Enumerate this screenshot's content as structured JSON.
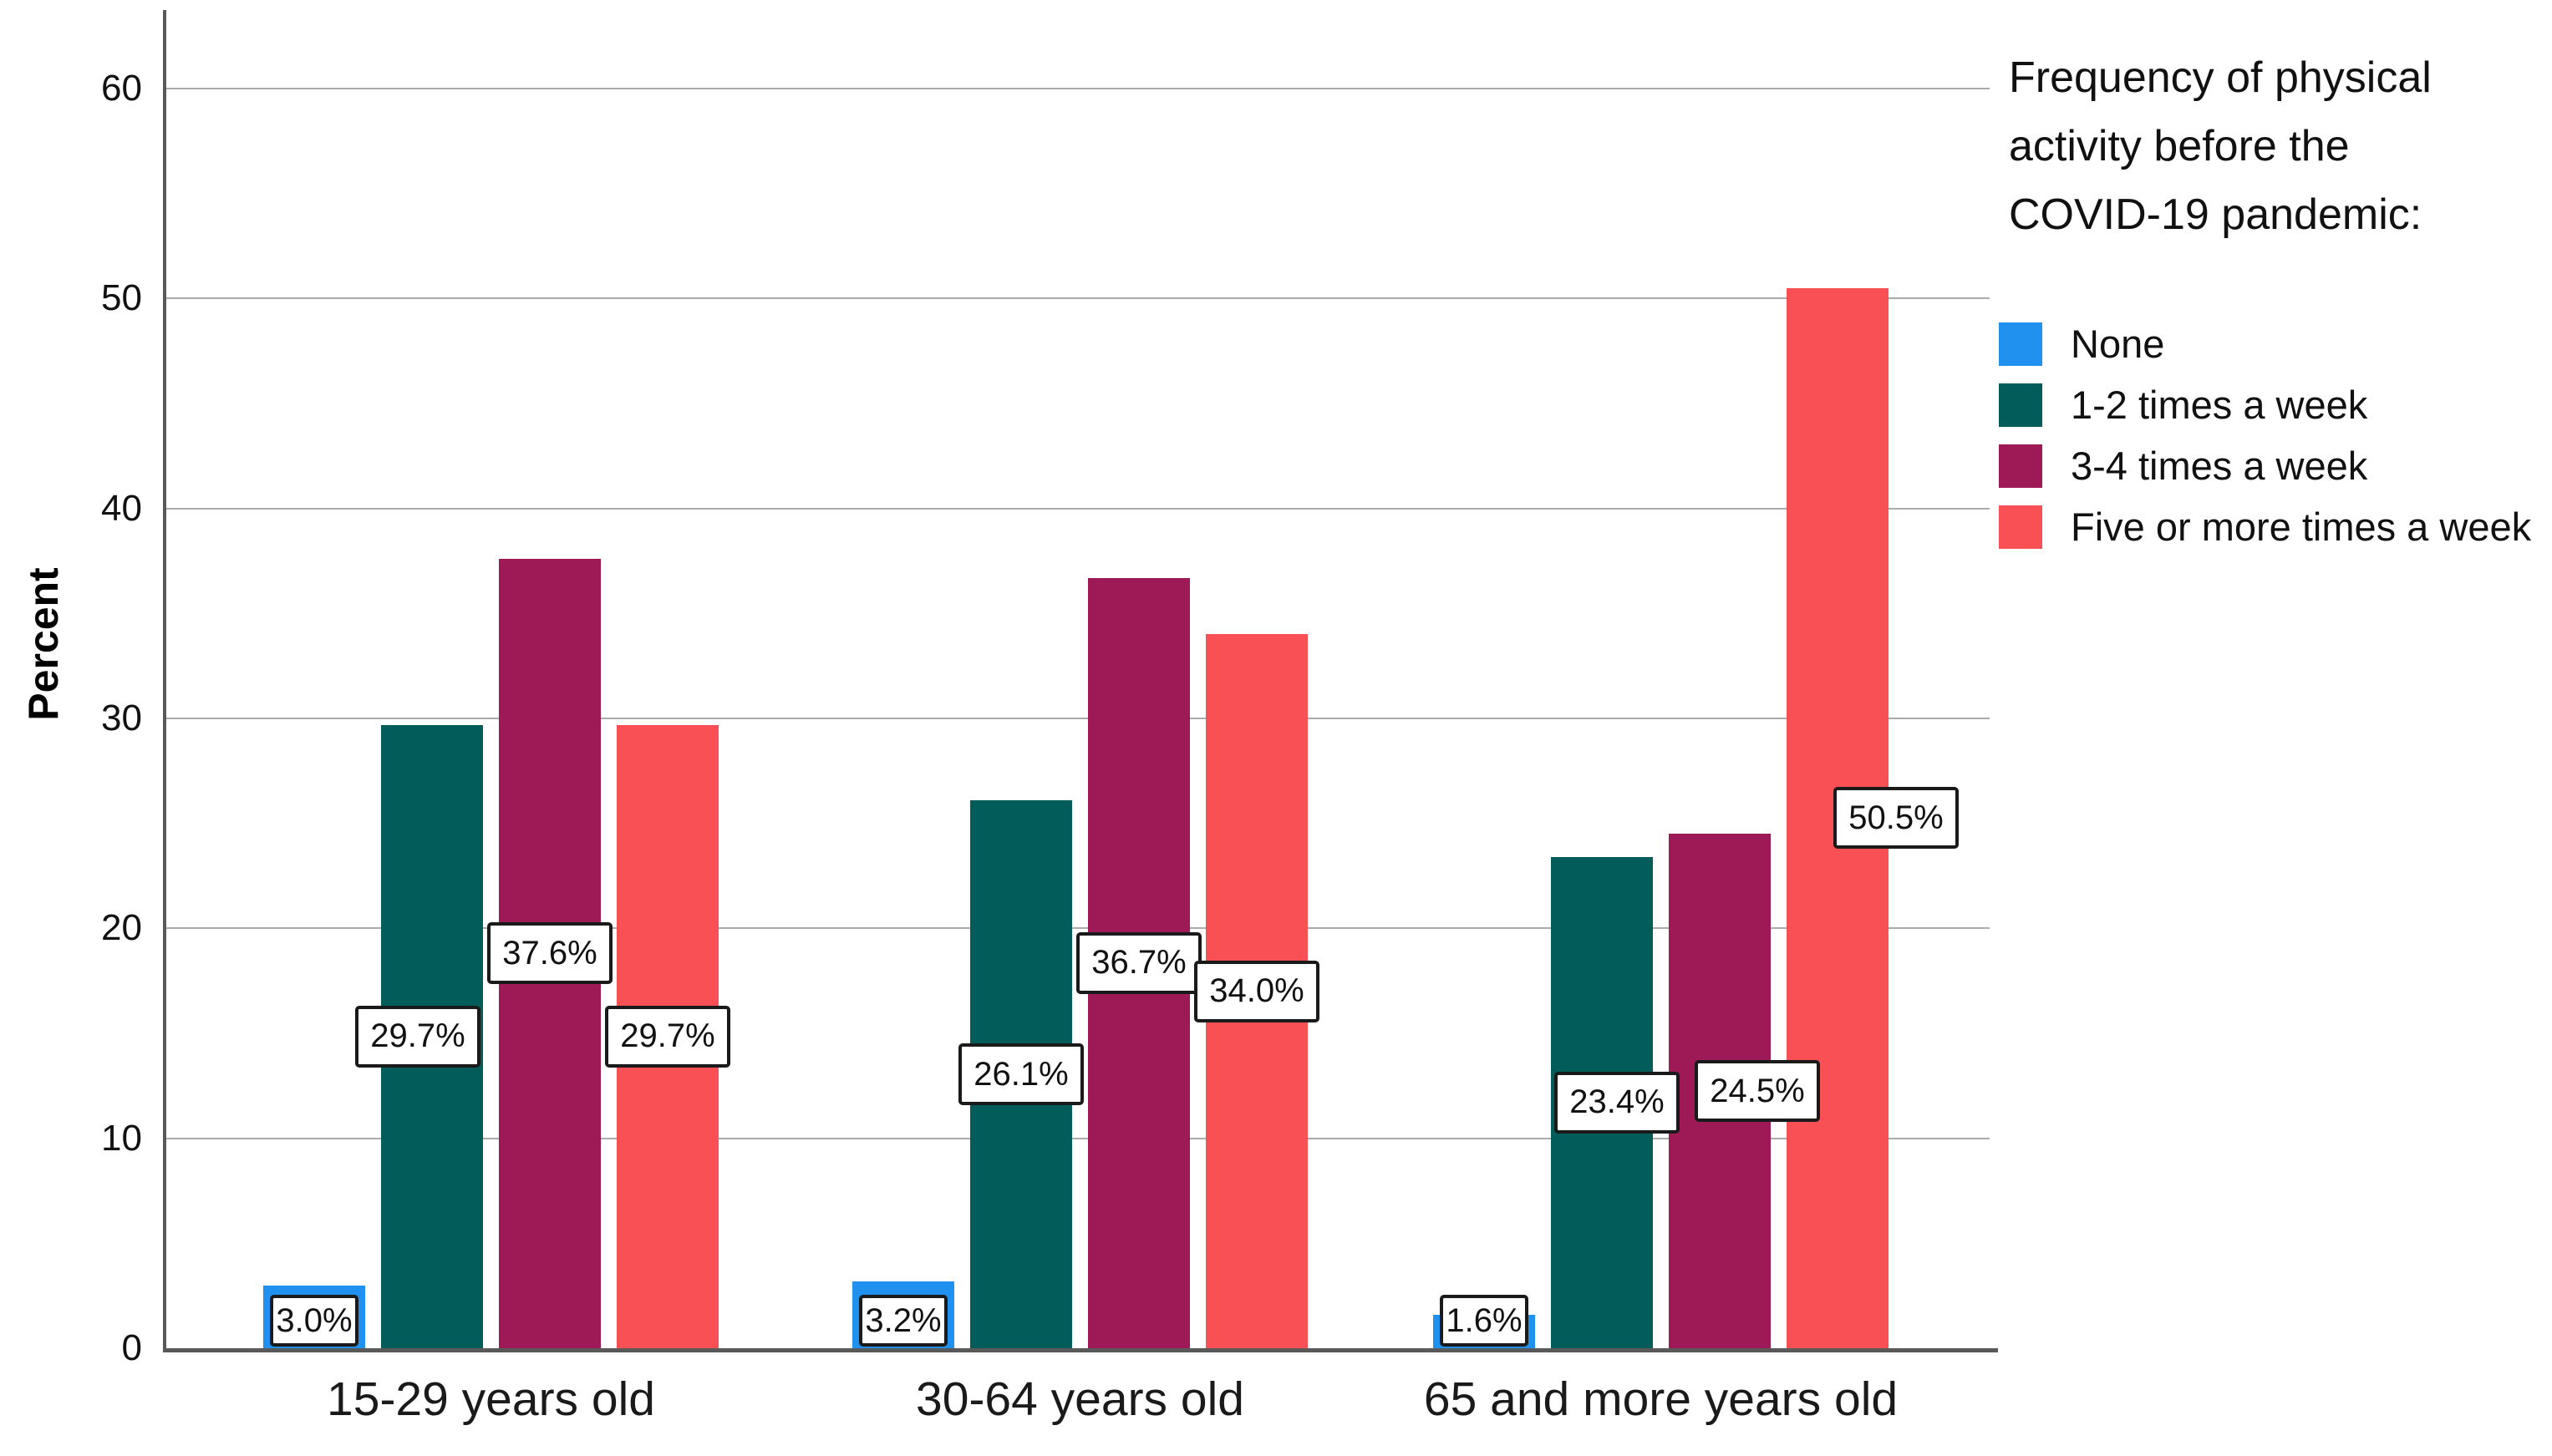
{
  "chart_data": {
    "type": "bar",
    "title": "",
    "ylabel": "Percent",
    "xlabel": "",
    "ylim": [
      0,
      60
    ],
    "yticks": [
      0,
      10,
      20,
      30,
      40,
      50,
      60
    ],
    "grid": true,
    "legend_position": "right",
    "legend_title_lines": [
      "Frequency of physical",
      "activity before the",
      "COVID-19 pandemic:"
    ],
    "categories": [
      "15-29 years old",
      "30-64 years old",
      "65 and more years old"
    ],
    "series": [
      {
        "name": "None",
        "color": "#2191F0",
        "values": [
          3.0,
          3.2,
          1.6
        ],
        "value_labels": [
          "3.0%",
          "3.2%",
          "1.6%"
        ]
      },
      {
        "name": "1-2 times a week",
        "color": "#025D5A",
        "values": [
          29.7,
          26.1,
          23.4
        ],
        "value_labels": [
          "29.7%",
          "26.1%",
          "23.4%"
        ]
      },
      {
        "name": "3-4 times a week",
        "color": "#9E1A56",
        "values": [
          37.6,
          36.7,
          24.5
        ],
        "value_labels": [
          "37.6%",
          "36.7%",
          "24.5%"
        ]
      },
      {
        "name": "Five or more times a week",
        "color": "#F95055",
        "values": [
          29.7,
          34.0,
          50.5
        ],
        "value_labels": [
          "29.7%",
          "34.0%",
          "50.5%"
        ]
      }
    ]
  }
}
